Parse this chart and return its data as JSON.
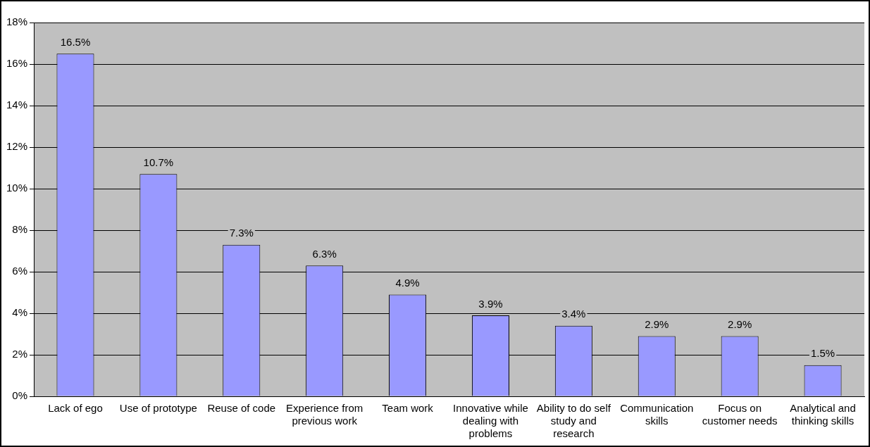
{
  "chart_data": {
    "type": "bar",
    "categories": [
      "Lack of ego",
      "Use of prototype",
      "Reuse of code",
      "Experience from previous work",
      "Team work",
      "Innovative while dealing with problems",
      "Ability to do self study and research",
      "Communication skills",
      "Focus on customer needs",
      "Analytical and thinking skills"
    ],
    "values": [
      16.5,
      10.7,
      7.3,
      6.3,
      4.9,
      3.9,
      3.4,
      2.9,
      2.9,
      1.5
    ],
    "value_labels": [
      "16.5%",
      "10.7%",
      "7.3%",
      "6.3%",
      "4.9%",
      "3.9%",
      "3.4%",
      "2.9%",
      "2.9%",
      "1.5%"
    ],
    "color": "#9999ff",
    "ylim": [
      0,
      18
    ],
    "yticks": [
      {
        "value": 0,
        "label": "0%"
      },
      {
        "value": 2,
        "label": "2%"
      },
      {
        "value": 4,
        "label": "4%"
      },
      {
        "value": 6,
        "label": "6%"
      },
      {
        "value": 8,
        "label": "8%"
      },
      {
        "value": 10,
        "label": "10%"
      },
      {
        "value": 12,
        "label": "12%"
      },
      {
        "value": 14,
        "label": "14%"
      },
      {
        "value": 16,
        "label": "16%"
      },
      {
        "value": 18,
        "label": "18%"
      }
    ],
    "grid": "y",
    "legend": false
  }
}
